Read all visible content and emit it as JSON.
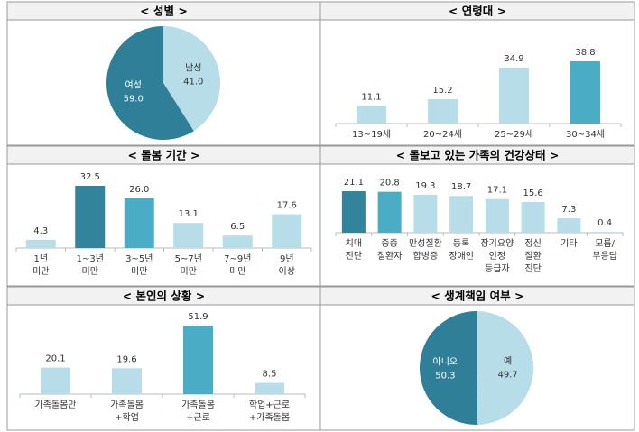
{
  "chart_data": [
    {
      "type": "pie",
      "title": "< 성별 >",
      "categories": [
        "남성",
        "여성"
      ],
      "values": [
        41.0,
        59.0
      ],
      "value_labels": [
        "41.0",
        "59.0"
      ],
      "colors": [
        "#b7dde8",
        "#2e7f97"
      ]
    },
    {
      "type": "bar",
      "title": "< 연령대 >",
      "categories": [
        [
          "13~19세"
        ],
        [
          "20~24세"
        ],
        [
          "25~29세"
        ],
        [
          "30~34세"
        ]
      ],
      "values": [
        11.1,
        15.2,
        34.9,
        38.8
      ],
      "value_labels": [
        "11.1",
        "15.2",
        "34.9",
        "38.8"
      ],
      "colors": [
        "#b7dde8",
        "#b7dde8",
        "#b7dde8",
        "#4bacc6"
      ]
    },
    {
      "type": "bar",
      "title": "< 돌봄 기간 >",
      "categories": [
        [
          "1년",
          "미만"
        ],
        [
          "1~3년",
          "미만"
        ],
        [
          "3~5년",
          "미만"
        ],
        [
          "5~7년",
          "미만"
        ],
        [
          "7~9년",
          "미만"
        ],
        [
          "9년",
          "이상"
        ]
      ],
      "values": [
        4.3,
        32.5,
        26.0,
        13.1,
        6.5,
        17.6
      ],
      "value_labels": [
        "4.3",
        "32.5",
        "26.0",
        "13.1",
        "6.5",
        "17.6"
      ],
      "colors": [
        "#b7dde8",
        "#31849b",
        "#4bacc6",
        "#b7dde8",
        "#b7dde8",
        "#b7dde8"
      ]
    },
    {
      "type": "bar",
      "title": "< 돌보고 있는 가족의 건강상태 >",
      "categories": [
        [
          "치매",
          "진단"
        ],
        [
          "중증",
          "질환자"
        ],
        [
          "만성질환",
          "합병증"
        ],
        [
          "등록",
          "장애인"
        ],
        [
          "장기요양",
          "인정",
          "등급자"
        ],
        [
          "정신",
          "질환",
          "진단"
        ],
        [
          "기타"
        ],
        [
          "모름/",
          "무응답"
        ]
      ],
      "values": [
        21.1,
        20.8,
        19.3,
        18.7,
        17.1,
        15.6,
        7.3,
        0.4
      ],
      "value_labels": [
        "21.1",
        "20.8",
        "19.3",
        "18.7",
        "17.1",
        "15.6",
        "7.3",
        "0.4"
      ],
      "colors": [
        "#31849b",
        "#4bacc6",
        "#b7dde8",
        "#b7dde8",
        "#b7dde8",
        "#b7dde8",
        "#b7dde8",
        "#b7dde8"
      ]
    },
    {
      "type": "bar",
      "title": "< 본인의 상황 >",
      "categories": [
        [
          "가족돌봄만"
        ],
        [
          "가족돌봄",
          "+학업"
        ],
        [
          "가족돌봄",
          "+근로"
        ],
        [
          "학업+근로",
          "+가족돌봄"
        ]
      ],
      "values": [
        20.1,
        19.6,
        51.9,
        8.5
      ],
      "value_labels": [
        "20.1",
        "19.6",
        "51.9",
        "8.5"
      ],
      "colors": [
        "#b7dde8",
        "#b7dde8",
        "#4bacc6",
        "#b7dde8"
      ]
    },
    {
      "type": "pie",
      "title": "< 생계책임 여부 >",
      "categories": [
        "예",
        "아니오"
      ],
      "values": [
        49.7,
        50.3
      ],
      "value_labels": [
        "49.7",
        "50.3"
      ],
      "colors": [
        "#b7dde8",
        "#2e7f97"
      ]
    }
  ]
}
